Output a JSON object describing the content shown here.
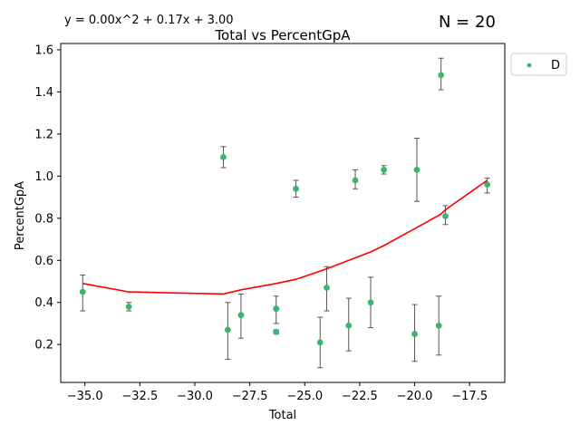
{
  "chart_data": {
    "type": "scatter",
    "title": "Total vs PercentGpA",
    "xlabel": "Total",
    "ylabel": "PercentGpA",
    "xlim": [
      -36.1,
      -15.9
    ],
    "ylim": [
      0.02,
      1.63
    ],
    "xticks": [
      -35.0,
      -32.5,
      -30.0,
      -27.5,
      -25.0,
      -22.5,
      -20.0,
      -17.5
    ],
    "xtick_labels": [
      "−35.0",
      "−32.5",
      "−30.0",
      "−27.5",
      "−25.0",
      "−22.5",
      "−20.0",
      "−17.5"
    ],
    "yticks": [
      0.2,
      0.4,
      0.6,
      0.8,
      1.0,
      1.2,
      1.4,
      1.6
    ],
    "ytick_labels": [
      "0.2",
      "0.4",
      "0.6",
      "0.8",
      "1.0",
      "1.2",
      "1.4",
      "1.6"
    ],
    "equation": "y = 0.00x^2 + 0.17x + 3.00",
    "n_label": "N = 20",
    "legend": {
      "label": "D",
      "placement": "outside-top-right"
    },
    "point_color": "#3cb371",
    "errorbar_color": "#555555",
    "fit_color": "#ff0000",
    "series": [
      {
        "name": "D",
        "points": [
          {
            "x": -35.1,
            "y": 0.45,
            "err_lo": 0.36,
            "err_hi": 0.53
          },
          {
            "x": -33.0,
            "y": 0.38,
            "err_lo": 0.36,
            "err_hi": 0.4
          },
          {
            "x": -28.7,
            "y": 1.09,
            "err_lo": 1.04,
            "err_hi": 1.14
          },
          {
            "x": -28.5,
            "y": 0.27,
            "err_lo": 0.13,
            "err_hi": 0.4
          },
          {
            "x": -27.9,
            "y": 0.34,
            "err_lo": 0.23,
            "err_hi": 0.44
          },
          {
            "x": -26.3,
            "y": 0.37,
            "err_lo": 0.3,
            "err_hi": 0.43
          },
          {
            "x": -26.3,
            "y": 0.26,
            "err_lo": 0.25,
            "err_hi": 0.27
          },
          {
            "x": -25.4,
            "y": 0.94,
            "err_lo": 0.9,
            "err_hi": 0.98
          },
          {
            "x": -24.3,
            "y": 0.21,
            "err_lo": 0.09,
            "err_hi": 0.33
          },
          {
            "x": -24.0,
            "y": 0.47,
            "err_lo": 0.36,
            "err_hi": 0.57
          },
          {
            "x": -23.0,
            "y": 0.29,
            "err_lo": 0.17,
            "err_hi": 0.42
          },
          {
            "x": -22.7,
            "y": 0.98,
            "err_lo": 0.94,
            "err_hi": 1.03
          },
          {
            "x": -22.0,
            "y": 0.4,
            "err_lo": 0.28,
            "err_hi": 0.52
          },
          {
            "x": -21.4,
            "y": 1.03,
            "err_lo": 1.01,
            "err_hi": 1.05
          },
          {
            "x": -19.9,
            "y": 1.03,
            "err_lo": 0.88,
            "err_hi": 1.18
          },
          {
            "x": -20.0,
            "y": 0.25,
            "err_lo": 0.12,
            "err_hi": 0.39
          },
          {
            "x": -18.9,
            "y": 0.29,
            "err_lo": 0.15,
            "err_hi": 0.43
          },
          {
            "x": -18.8,
            "y": 1.48,
            "err_lo": 1.41,
            "err_hi": 1.56
          },
          {
            "x": -18.6,
            "y": 0.81,
            "err_lo": 0.77,
            "err_hi": 0.86
          },
          {
            "x": -16.7,
            "y": 0.96,
            "err_lo": 0.92,
            "err_hi": 0.99
          }
        ]
      }
    ],
    "fit_line": {
      "x": [
        -35.1,
        -33.0,
        -28.7,
        -27.9,
        -26.3,
        -25.4,
        -24.0,
        -23.0,
        -22.0,
        -21.4,
        -20.0,
        -18.8,
        -18.6,
        -16.7
      ],
      "y": [
        0.49,
        0.45,
        0.44,
        0.46,
        0.49,
        0.51,
        0.56,
        0.6,
        0.64,
        0.67,
        0.75,
        0.82,
        0.84,
        0.98
      ]
    }
  }
}
